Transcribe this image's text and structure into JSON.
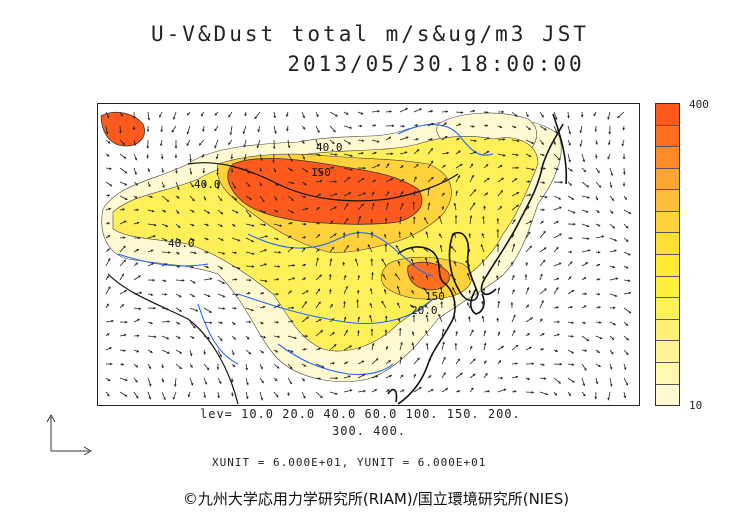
{
  "title": {
    "line1": "U-V&Dust total m/s&ug/m3 JST",
    "line2": "2013/05/30.18:00:00"
  },
  "map": {
    "coastline_color": "#111111",
    "river_color": "#2266ff",
    "vector_color": "#222222",
    "contour_labels": [
      "40.0",
      "150",
      "40.0",
      "40.0",
      "150",
      "20.0"
    ]
  },
  "legend": {
    "levels_line1": "lev= 10.0 20.0 40.0 60.0 100. 150. 200.",
    "levels_line2": "300. 400.",
    "unit_line": "XUNIT = 6.000E+01, YUNIT = 6.000E+01"
  },
  "colorbar": {
    "max_label": "400",
    "min_label": "10",
    "colors_top_to_bottom": [
      "#ff5a1e",
      "#ff6e1e",
      "#ff8a28",
      "#ffa532",
      "#ffbe3c",
      "#ffd23c",
      "#ffe032",
      "#ffec32",
      "#fff03c",
      "#fff05a",
      "#fff078",
      "#fff496",
      "#fff7b4",
      "#fffad2"
    ]
  },
  "credit": "©九州大学応用力学研究所(RIAM)/国立環境研究所(NIES)"
}
